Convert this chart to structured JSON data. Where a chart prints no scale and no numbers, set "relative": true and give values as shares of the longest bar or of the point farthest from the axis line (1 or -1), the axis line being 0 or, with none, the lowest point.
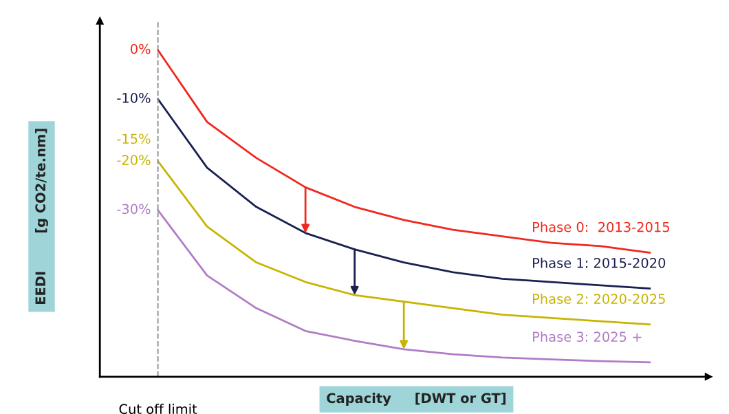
{
  "chart_data": {
    "type": "line",
    "relative": true,
    "xlabel": "Capacity     [DWT or GT]",
    "ylabel": "EEDI        [g CO2/te.nm]",
    "categories": [
      null,
      null,
      null,
      null,
      null,
      null,
      null,
      null,
      null,
      null,
      null
    ],
    "series": [
      {
        "name": "Phase 0:  2013-2015",
        "color": "#f0281e",
        "values": [
          1,
          0.78,
          0.67,
          0.58,
          0.52,
          0.48,
          0.45,
          0.43,
          0.41,
          0.4,
          0.38
        ]
      },
      {
        "name": "Phase 1: 2015-2020",
        "color": "#1a2050",
        "values": [
          0.85,
          0.64,
          0.52,
          0.44,
          0.39,
          0.35,
          0.32,
          0.3,
          0.29,
          0.28,
          0.27
        ]
      },
      {
        "name": "Phase 2: 2020-2025",
        "color": "#c8b400",
        "values": [
          0.66,
          0.46,
          0.35,
          0.29,
          0.25,
          0.23,
          0.21,
          0.19,
          0.18,
          0.17,
          0.16
        ]
      },
      {
        "name": "Phase 3: 2025 +",
        "color": "#b07cc6",
        "values": [
          0.51,
          0.31,
          0.21,
          0.14,
          0.11,
          0.084,
          0.069,
          0.059,
          0.053,
          0.048,
          0.044
        ]
      }
    ],
    "annotations": [
      "0%",
      "-10%",
      "-15%",
      "-20%",
      "-30%",
      "Cut off limit"
    ],
    "marker": "none",
    "line_style": "solid"
  }
}
